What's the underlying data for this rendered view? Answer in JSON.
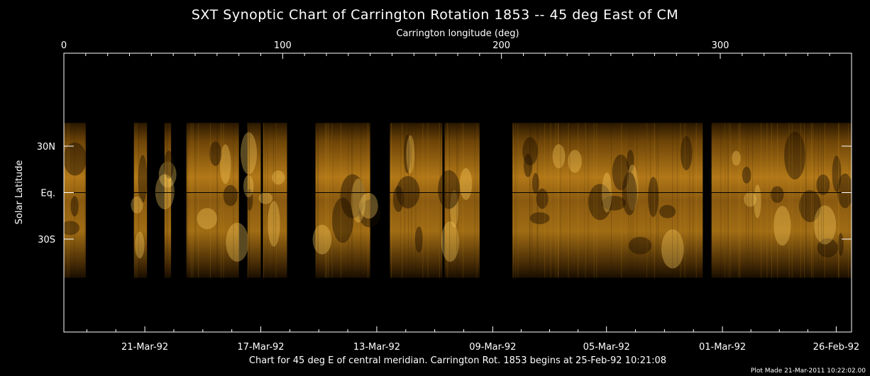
{
  "page": {
    "background": "#000000",
    "plot_made": "Plot Made 21-Mar-2011 10:22:02.00",
    "caption": "Chart for 45 deg E of central meridian.  Carrington Rot. 1853 begins at 25-Feb-92 10:21:08"
  },
  "chart_data": {
    "type": "heatmap",
    "title": "SXT Synoptic Chart of Carrington Rotation 1853 -- 45 deg East of CM",
    "top_axis": {
      "label": "Carrington longitude (deg)",
      "range": [
        0,
        360
      ],
      "ticks": [
        0,
        100,
        200,
        300
      ],
      "tick_labels": [
        "0",
        "100",
        "200",
        "300"
      ]
    },
    "left_axis": {
      "label": "Solar Latitude",
      "ticks": [
        30,
        0,
        -30
      ],
      "tick_labels": [
        "30N",
        "Eq.",
        "30S"
      ],
      "range": [
        -90,
        90
      ]
    },
    "bottom_axis": {
      "tick_labels": [
        "21-Mar-92",
        "17-Mar-92",
        "13-Mar-92",
        "09-Mar-92",
        "05-Mar-92",
        "01-Mar-92",
        "26-Feb-92"
      ],
      "tick_longitudes": [
        37,
        90,
        143,
        196,
        248,
        301,
        353
      ]
    },
    "equator_latitude": 0,
    "colormap": {
      "dark": "#1a0e00",
      "mid": "#8a5a10",
      "bright": "#ffd060",
      "accent": "#e0a020"
    },
    "data_strips": [
      {
        "lon0": 0,
        "lon1": 10
      },
      {
        "lon0": 32,
        "lon1": 38
      },
      {
        "lon0": 46,
        "lon1": 49
      },
      {
        "lon0": 56,
        "lon1": 80
      },
      {
        "lon0": 84,
        "lon1": 90
      },
      {
        "lon0": 91,
        "lon1": 102
      },
      {
        "lon0": 115,
        "lon1": 140
      },
      {
        "lon0": 149,
        "lon1": 173
      },
      {
        "lon0": 174,
        "lon1": 190
      },
      {
        "lon0": 205,
        "lon1": 292
      },
      {
        "lon0": 296,
        "lon1": 360
      }
    ],
    "data_latitude_range": [
      -55,
      45
    ]
  }
}
